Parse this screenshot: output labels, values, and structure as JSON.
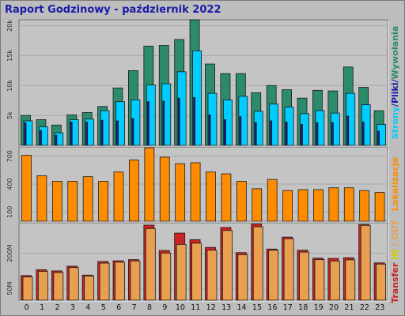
{
  "title": "Raport Godzinowy -  październik 2022",
  "colors": {
    "background": "#bdbdbd",
    "plot_background": "#c4c4c4",
    "title": "#1a1aa8",
    "strony": "#2c8b6b",
    "pliki": "#00ccff",
    "wywolania": "#1a1aa8",
    "lokalizacje": "#ff8c00",
    "transfer": "#cc2222",
    "in": "#d0d000",
    "out": "#e8a050"
  },
  "chart_data": [
    {
      "type": "bar",
      "name": "strony-pliki-wywolania",
      "categories": [
        "0",
        "1",
        "2",
        "3",
        "4",
        "5",
        "6",
        "7",
        "8",
        "9",
        "10",
        "11",
        "12",
        "13",
        "14",
        "15",
        "16",
        "17",
        "18",
        "19",
        "20",
        "21",
        "22",
        "23"
      ],
      "ylim": [
        0,
        21000
      ],
      "yticks": [
        {
          "label": "5k",
          "value": 5000
        },
        {
          "label": "10k",
          "value": 10000
        },
        {
          "label": "15k",
          "value": 15000
        },
        {
          "label": "20k",
          "value": 20000
        }
      ],
      "legend_text": {
        "strony": "Strony",
        "sep1": "/",
        "pliki": "Pliki",
        "sep2": "/",
        "wywolania": "Wywołania"
      },
      "series": [
        {
          "key": "wywolania",
          "values": [
            5000,
            4300,
            3400,
            5100,
            5500,
            6500,
            9600,
            12500,
            16600,
            16700,
            17700,
            21000,
            13600,
            12000,
            12000,
            8800,
            10000,
            9300,
            7900,
            9200,
            9100,
            13100,
            9700,
            5800
          ]
        },
        {
          "key": "pliki",
          "values": [
            4100,
            3100,
            2100,
            4300,
            4400,
            5800,
            7300,
            7600,
            10100,
            10300,
            12300,
            15800,
            8700,
            7600,
            8200,
            5700,
            6900,
            6400,
            5300,
            5800,
            5400,
            8700,
            6800,
            3500
          ]
        },
        {
          "key": "strony",
          "values": [
            3800,
            2500,
            1700,
            3900,
            3900,
            4200,
            4100,
            4500,
            7300,
            7400,
            7900,
            8000,
            5100,
            4300,
            4800,
            3800,
            4100,
            3900,
            3500,
            3800,
            3800,
            4900,
            3900,
            2400
          ]
        }
      ]
    },
    {
      "type": "bar",
      "name": "lokalizacje",
      "categories": [
        "0",
        "1",
        "2",
        "3",
        "4",
        "5",
        "6",
        "7",
        "8",
        "9",
        "10",
        "11",
        "12",
        "13",
        "14",
        "15",
        "16",
        "17",
        "18",
        "19",
        "20",
        "21",
        "22",
        "23"
      ],
      "ylim": [
        0,
        800
      ],
      "yticks": [
        {
          "label": "100",
          "value": 100
        },
        {
          "label": "400",
          "value": 400
        },
        {
          "label": "700",
          "value": 700
        }
      ],
      "legend_text": {
        "lokalizacje": "Lokalizacje"
      },
      "series": [
        {
          "key": "lokalizacje",
          "values": [
            710,
            490,
            430,
            430,
            480,
            430,
            530,
            660,
            790,
            690,
            620,
            630,
            530,
            510,
            430,
            350,
            450,
            330,
            340,
            340,
            360,
            360,
            330,
            310
          ]
        }
      ]
    },
    {
      "type": "bar",
      "name": "transfer",
      "categories": [
        "0",
        "1",
        "2",
        "3",
        "4",
        "5",
        "6",
        "7",
        "8",
        "9",
        "10",
        "11",
        "12",
        "13",
        "14",
        "15",
        "16",
        "17",
        "18",
        "19",
        "20",
        "21",
        "22",
        "23"
      ],
      "ylim": [
        0,
        330
      ],
      "yticks": [
        {
          "label": "50M",
          "value": 50
        },
        {
          "label": "200M",
          "value": 200
        }
      ],
      "legend_text": {
        "transfer": "Transfer",
        "sep1": " ",
        "in": "IN",
        "sep2": " / ",
        "out": "OUT"
      },
      "series": [
        {
          "key": "transfer",
          "values": [
            105,
            130,
            125,
            145,
            107,
            165,
            168,
            173,
            320,
            212,
            286,
            258,
            225,
            310,
            203,
            325,
            218,
            269,
            213,
            179,
            178,
            181,
            323,
            159
          ]
        },
        {
          "key": "out",
          "values": [
            99,
            123,
            118,
            139,
            103,
            158,
            162,
            167,
            305,
            201,
            238,
            243,
            213,
            297,
            194,
            313,
            213,
            262,
            205,
            173,
            167,
            172,
            319,
            154
          ]
        }
      ]
    }
  ]
}
